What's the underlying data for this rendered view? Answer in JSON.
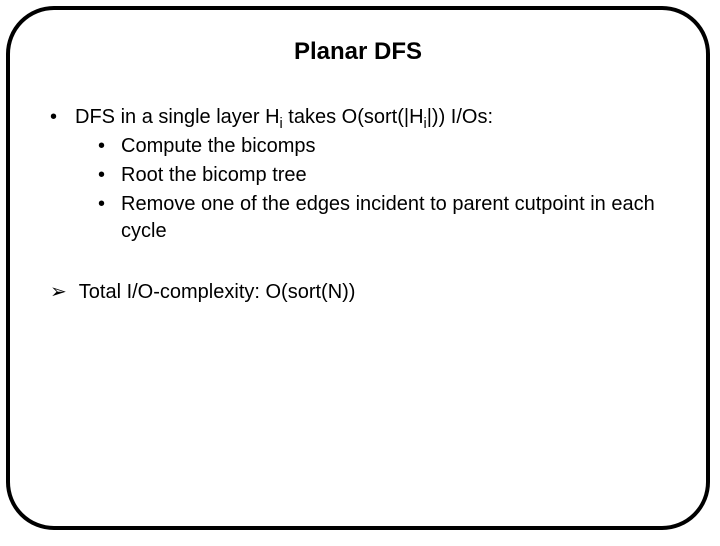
{
  "title": "Planar DFS",
  "bullets": {
    "main": {
      "prefix": "DFS in a single layer H",
      "sub1": "i",
      "mid": " takes O(sort(|H",
      "sub2": "i",
      "suffix": "|)) I/Os:"
    },
    "children": [
      "Compute the bicomps",
      "Root the bicomp tree",
      "Remove one of the edges incident to parent cutpoint in each cycle"
    ]
  },
  "conclusion": "Total I/O-complexity: O(sort(N))",
  "symbols": {
    "bullet": "•",
    "arrow": "➢"
  },
  "colors": {
    "border": "#000000",
    "text": "#000000",
    "background": "#ffffff"
  },
  "typography": {
    "title_fontsize": 24,
    "body_fontsize": 20,
    "title_weight": "bold"
  }
}
